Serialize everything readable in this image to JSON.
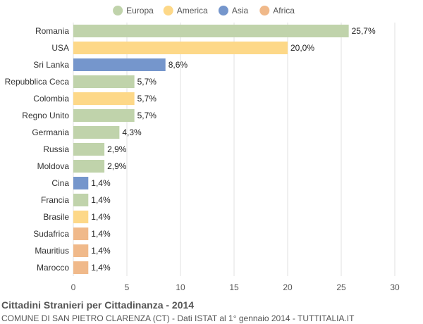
{
  "chart_data": {
    "type": "bar",
    "orientation": "horizontal",
    "title": "Cittadini Stranieri per Cittadinanza - 2014",
    "subtitle": "COMUNE DI SAN PIETRO CLARENZA (CT) - Dati ISTAT al 1° gennaio 2014 - TUTTITALIA.IT",
    "xlim": [
      0,
      30
    ],
    "xticks": [
      0,
      5,
      10,
      15,
      20,
      25,
      30
    ],
    "grid": true,
    "legend_position": "top-center",
    "legend": [
      {
        "name": "Europa",
        "color": "#c0d3ab"
      },
      {
        "name": "America",
        "color": "#fdd888"
      },
      {
        "name": "Asia",
        "color": "#7596cc"
      },
      {
        "name": "Africa",
        "color": "#f0b98a"
      }
    ],
    "categories": [
      "Romania",
      "USA",
      "Sri Lanka",
      "Repubblica Ceca",
      "Colombia",
      "Regno Unito",
      "Germania",
      "Russia",
      "Moldova",
      "Cina",
      "Francia",
      "Brasile",
      "Sudafrica",
      "Mauritius",
      "Marocco"
    ],
    "values": [
      25.7,
      20.0,
      8.6,
      5.7,
      5.7,
      5.7,
      4.3,
      2.9,
      2.9,
      1.4,
      1.4,
      1.4,
      1.4,
      1.4,
      1.4
    ],
    "value_labels": [
      "25,7%",
      "20,0%",
      "8,6%",
      "5,7%",
      "5,7%",
      "5,7%",
      "4,3%",
      "2,9%",
      "2,9%",
      "1,4%",
      "1,4%",
      "1,4%",
      "1,4%",
      "1,4%",
      "1,4%"
    ],
    "groups": [
      "Europa",
      "America",
      "Asia",
      "Europa",
      "America",
      "Europa",
      "Europa",
      "Europa",
      "Europa",
      "Asia",
      "Europa",
      "America",
      "Africa",
      "Africa",
      "Africa"
    ]
  }
}
